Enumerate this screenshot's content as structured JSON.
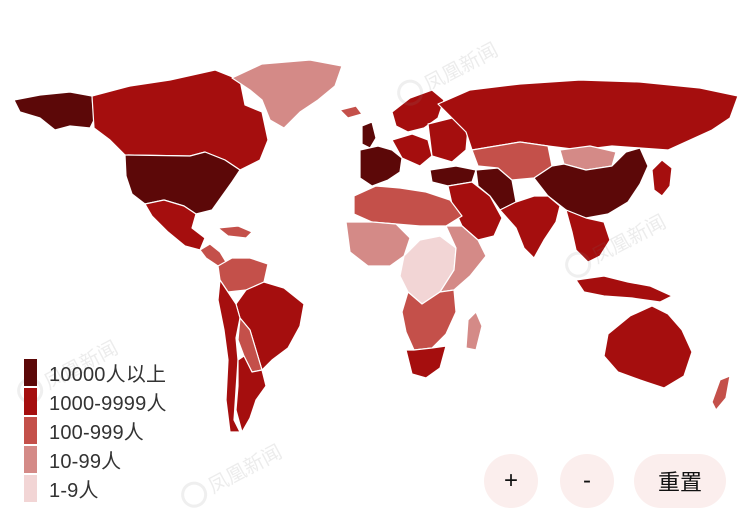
{
  "legend": {
    "items": [
      {
        "label": "10000人以上",
        "color": "#5c0808"
      },
      {
        "label": "1000-9999人",
        "color": "#a50e0e"
      },
      {
        "label": "100-999人",
        "color": "#c4504a"
      },
      {
        "label": "10-99人",
        "color": "#d48a87"
      },
      {
        "label": "1-9人",
        "color": "#f2d5d5"
      }
    ]
  },
  "controls": {
    "zoom_in": "+",
    "zoom_out": "-",
    "reset": "重置"
  },
  "watermark": {
    "text": "凤凰新闻"
  },
  "regions": [
    {
      "name": "alaska",
      "level": 0
    },
    {
      "name": "canada",
      "level": 1
    },
    {
      "name": "greenland",
      "level": 3
    },
    {
      "name": "usa",
      "level": 0
    },
    {
      "name": "mexico",
      "level": 1
    },
    {
      "name": "central-america",
      "level": 2
    },
    {
      "name": "caribbean",
      "level": 2
    },
    {
      "name": "colombia-venezuela",
      "level": 2
    },
    {
      "name": "brazil",
      "level": 1
    },
    {
      "name": "peru-chile",
      "level": 1
    },
    {
      "name": "bolivia-paraguay",
      "level": 2
    },
    {
      "name": "argentina",
      "level": 1
    },
    {
      "name": "iceland",
      "level": 2
    },
    {
      "name": "uk-ireland",
      "level": 0
    },
    {
      "name": "western-europe",
      "level": 0
    },
    {
      "name": "central-europe",
      "level": 1
    },
    {
      "name": "scandinavia",
      "level": 1
    },
    {
      "name": "eastern-europe",
      "level": 1
    },
    {
      "name": "russia",
      "level": 1
    },
    {
      "name": "turkey",
      "level": 0
    },
    {
      "name": "middle-east",
      "level": 1
    },
    {
      "name": "iran",
      "level": 0
    },
    {
      "name": "central-asia",
      "level": 2
    },
    {
      "name": "mongolia",
      "level": 3
    },
    {
      "name": "china",
      "level": 0
    },
    {
      "name": "korea-japan",
      "level": 1
    },
    {
      "name": "south-asia",
      "level": 1
    },
    {
      "name": "southeast-asia",
      "level": 1
    },
    {
      "name": "north-africa",
      "level": 2
    },
    {
      "name": "west-africa",
      "level": 3
    },
    {
      "name": "central-africa",
      "level": 4
    },
    {
      "name": "east-africa",
      "level": 3
    },
    {
      "name": "southern-africa",
      "level": 2
    },
    {
      "name": "south-africa",
      "level": 1
    },
    {
      "name": "madagascar",
      "level": 3
    },
    {
      "name": "indonesia",
      "level": 1
    },
    {
      "name": "australia",
      "level": 1
    },
    {
      "name": "new-zealand",
      "level": 2
    }
  ]
}
